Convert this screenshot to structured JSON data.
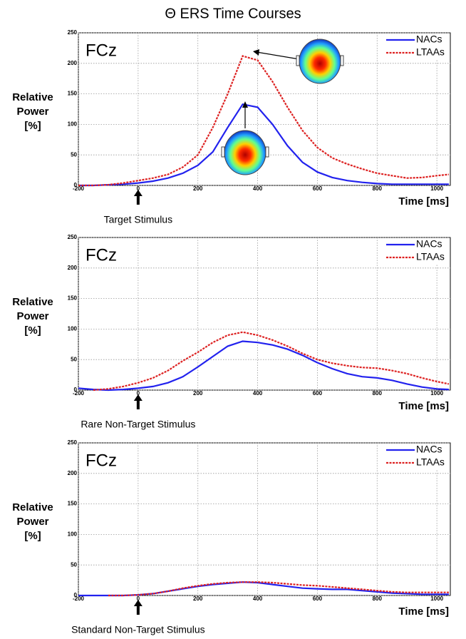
{
  "title": "Θ ERS Time Courses",
  "chart_data": [
    {
      "type": "line",
      "label": "FCz",
      "ylabel": [
        "Relative",
        "Power",
        "[%]"
      ],
      "xlabel": "Time [ms]",
      "annotation": "Target Stimulus",
      "x": [
        -200,
        -150,
        -100,
        -50,
        0,
        50,
        100,
        150,
        200,
        250,
        300,
        350,
        400,
        450,
        500,
        550,
        600,
        650,
        700,
        750,
        800,
        850,
        900,
        950,
        1000,
        1040
      ],
      "xlim": [
        -200,
        1045
      ],
      "xticks": [
        -200,
        0,
        200,
        400,
        600,
        800,
        1000
      ],
      "ylim": [
        0,
        250
      ],
      "yticks": [
        0,
        50,
        100,
        150,
        200,
        250
      ],
      "grid": true,
      "legend": "top-right",
      "series": [
        {
          "name": "NACs",
          "color": "#2222ee",
          "dash": false,
          "values": [
            0,
            0,
            1,
            2,
            4,
            7,
            12,
            20,
            33,
            55,
            95,
            133,
            128,
            100,
            65,
            38,
            22,
            13,
            8,
            5,
            3,
            2,
            2,
            2,
            2,
            2
          ]
        },
        {
          "name": "LTAAs",
          "color": "#dd2222",
          "dash": true,
          "values": [
            0,
            0,
            1,
            4,
            8,
            12,
            18,
            30,
            50,
            95,
            150,
            212,
            205,
            170,
            128,
            90,
            62,
            45,
            35,
            27,
            20,
            16,
            12,
            13,
            16,
            18
          ]
        }
      ]
    },
    {
      "type": "line",
      "label": "FCz",
      "ylabel": [
        "Relative",
        "Power",
        "[%]"
      ],
      "xlabel": "Time [ms]",
      "annotation": "Rare Non-Target Stimulus",
      "x": [
        -200,
        -150,
        -100,
        -50,
        0,
        50,
        100,
        150,
        200,
        250,
        300,
        350,
        400,
        450,
        500,
        550,
        600,
        650,
        700,
        750,
        800,
        850,
        900,
        950,
        1000,
        1040
      ],
      "xlim": [
        -200,
        1045
      ],
      "xticks": [
        -200,
        0,
        200,
        400,
        600,
        800,
        1000
      ],
      "ylim": [
        0,
        250
      ],
      "yticks": [
        0,
        50,
        100,
        150,
        200,
        250
      ],
      "grid": true,
      "legend": "top-right",
      "series": [
        {
          "name": "NACs",
          "color": "#2222ee",
          "dash": false,
          "values": [
            3,
            1,
            0,
            1,
            3,
            6,
            12,
            22,
            38,
            55,
            72,
            80,
            78,
            74,
            67,
            57,
            45,
            35,
            27,
            22,
            20,
            16,
            10,
            5,
            2,
            1
          ]
        },
        {
          "name": "LTAAs",
          "color": "#dd2222",
          "dash": true,
          "values": [
            null,
            0,
            2,
            6,
            12,
            20,
            32,
            48,
            62,
            78,
            90,
            95,
            90,
            82,
            72,
            60,
            50,
            44,
            40,
            37,
            36,
            32,
            27,
            20,
            14,
            10
          ]
        }
      ]
    },
    {
      "type": "line",
      "label": "FCz",
      "ylabel": [
        "Relative",
        "Power",
        "[%]"
      ],
      "xlabel": "Time [ms]",
      "annotation": "Standard Non-Target Stimulus",
      "x": [
        -200,
        -150,
        -100,
        -50,
        0,
        50,
        100,
        150,
        200,
        250,
        300,
        350,
        400,
        450,
        500,
        550,
        600,
        650,
        700,
        750,
        800,
        850,
        900,
        950,
        1000,
        1040
      ],
      "xlim": [
        -200,
        1045
      ],
      "xticks": [
        -200,
        0,
        200,
        400,
        600,
        800,
        1000
      ],
      "ylim": [
        0,
        250
      ],
      "yticks": [
        0,
        50,
        100,
        150,
        200,
        250
      ],
      "grid": true,
      "legend": "top-right",
      "series": [
        {
          "name": "NACs",
          "color": "#2222ee",
          "dash": false,
          "values": [
            0,
            0,
            0,
            0,
            1,
            3,
            7,
            11,
            15,
            18,
            20,
            22,
            21,
            18,
            15,
            12,
            11,
            10,
            10,
            8,
            6,
            4,
            3,
            2,
            2,
            2
          ]
        },
        {
          "name": "LTAAs",
          "color": "#dd2222",
          "dash": true,
          "values": [
            null,
            null,
            0,
            0,
            1,
            3,
            7,
            12,
            16,
            19,
            21,
            22,
            22,
            21,
            19,
            17,
            16,
            14,
            12,
            10,
            8,
            6,
            5,
            5,
            5,
            5
          ]
        }
      ]
    }
  ]
}
